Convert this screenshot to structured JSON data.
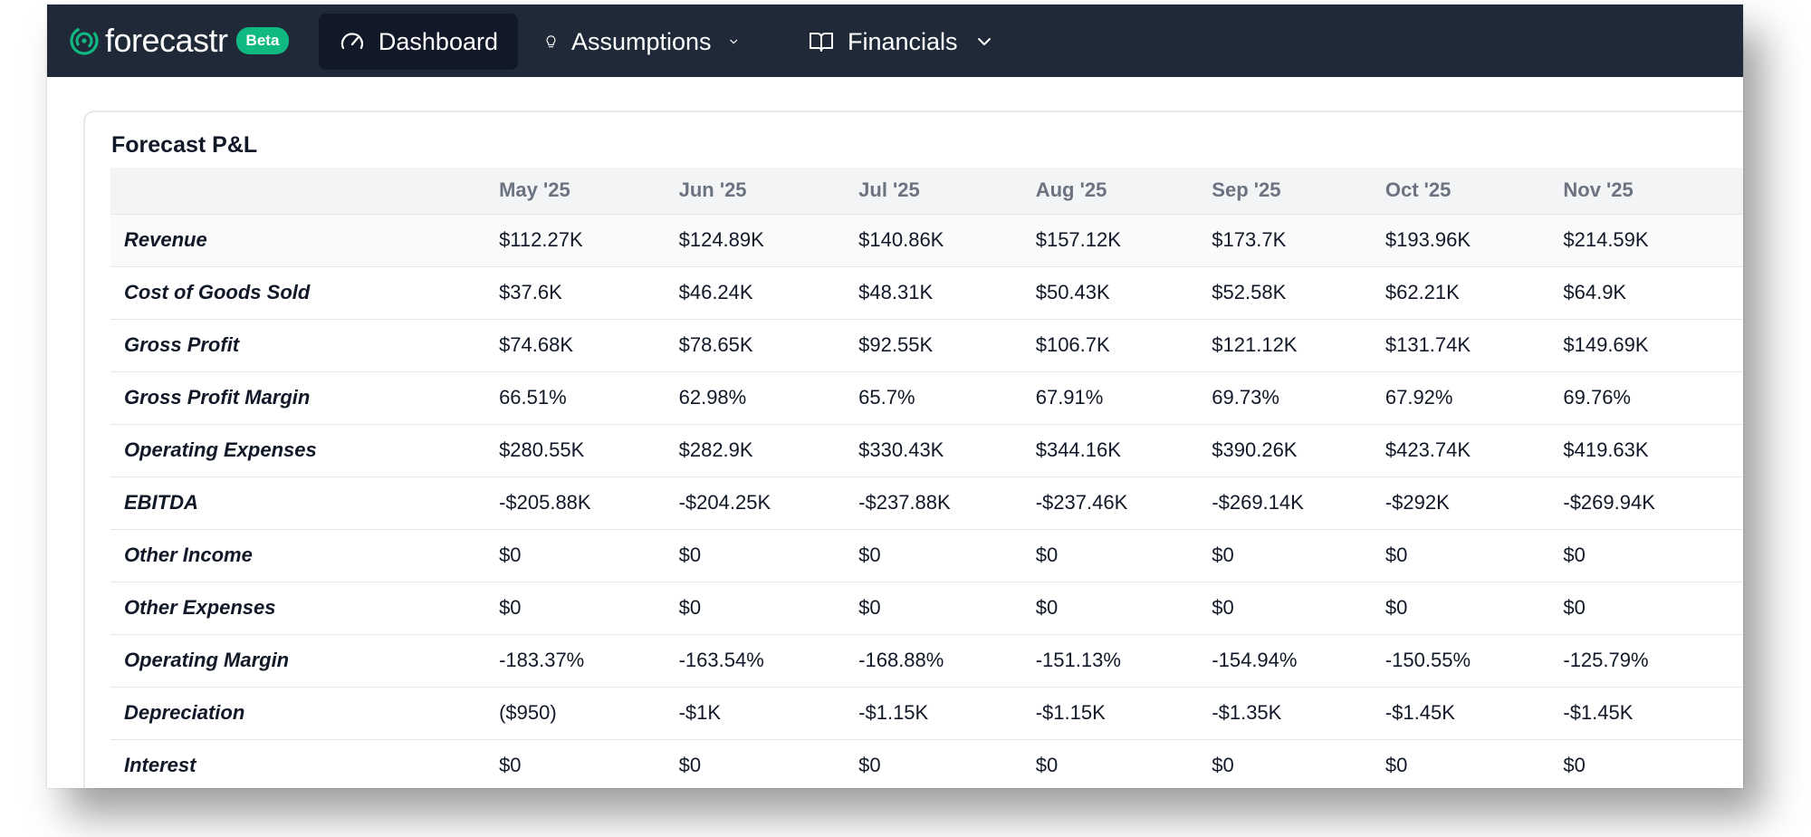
{
  "nav": {
    "logo_text": "forecastr",
    "beta_label": "Beta",
    "dashboard_label": "Dashboard",
    "assumptions_label": "Assumptions",
    "financials_label": "Financials"
  },
  "colors": {
    "navbar_bg": "#1f2937",
    "active_nav_bg": "#111827",
    "brand_accent": "#10b981"
  },
  "card": {
    "title": "Forecast P&L"
  },
  "table": {
    "columns": [
      "May '25",
      "Jun '25",
      "Jul '25",
      "Aug '25",
      "Sep '25",
      "Oct '25",
      "Nov '25"
    ],
    "rows": [
      {
        "label": "Revenue",
        "values": [
          "$112.27K",
          "$124.89K",
          "$140.86K",
          "$157.12K",
          "$173.7K",
          "$193.96K",
          "$214.59K"
        ]
      },
      {
        "label": "Cost of Goods Sold",
        "values": [
          "$37.6K",
          "$46.24K",
          "$48.31K",
          "$50.43K",
          "$52.58K",
          "$62.21K",
          "$64.9K"
        ]
      },
      {
        "label": "Gross Profit",
        "values": [
          "$74.68K",
          "$78.65K",
          "$92.55K",
          "$106.7K",
          "$121.12K",
          "$131.74K",
          "$149.69K"
        ]
      },
      {
        "label": "Gross Profit Margin",
        "values": [
          "66.51%",
          "62.98%",
          "65.7%",
          "67.91%",
          "69.73%",
          "67.92%",
          "69.76%"
        ]
      },
      {
        "label": "Operating Expenses",
        "values": [
          "$280.55K",
          "$282.9K",
          "$330.43K",
          "$344.16K",
          "$390.26K",
          "$423.74K",
          "$419.63K"
        ]
      },
      {
        "label": "EBITDA",
        "values": [
          "-$205.88K",
          "-$204.25K",
          "-$237.88K",
          "-$237.46K",
          "-$269.14K",
          "-$292K",
          "-$269.94K"
        ]
      },
      {
        "label": "Other Income",
        "values": [
          "$0",
          "$0",
          "$0",
          "$0",
          "$0",
          "$0",
          "$0"
        ]
      },
      {
        "label": "Other Expenses",
        "values": [
          "$0",
          "$0",
          "$0",
          "$0",
          "$0",
          "$0",
          "$0"
        ]
      },
      {
        "label": "Operating Margin",
        "values": [
          "-183.37%",
          "-163.54%",
          "-168.88%",
          "-151.13%",
          "-154.94%",
          "-150.55%",
          "-125.79%"
        ]
      },
      {
        "label": "Depreciation",
        "values": [
          "($950)",
          "-$1K",
          "-$1.15K",
          "-$1.15K",
          "-$1.35K",
          "-$1.45K",
          "-$1.45K"
        ]
      },
      {
        "label": "Interest",
        "values": [
          "$0",
          "$0",
          "$0",
          "$0",
          "$0",
          "$0",
          "$0"
        ]
      }
    ]
  }
}
